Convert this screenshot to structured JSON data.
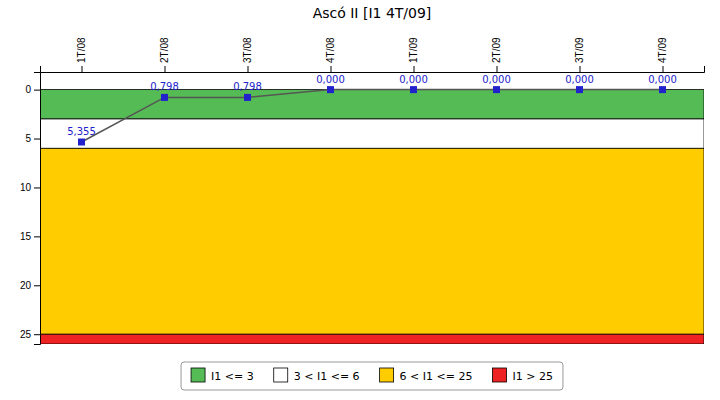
{
  "chart_data": {
    "type": "line",
    "title": "Ascó II [I1 4T/09]",
    "categories": [
      "1T/08",
      "2T/08",
      "3T/08",
      "4T/08",
      "1T/09",
      "2T/09",
      "3T/09",
      "4T/09"
    ],
    "values": [
      5.355,
      0.798,
      0.798,
      0.0,
      0.0,
      0.0,
      0.0,
      0.0
    ],
    "value_labels": [
      "5,355",
      "0,798",
      "0,798",
      "0,000",
      "0,000",
      "0,000",
      "0,000",
      "0,000"
    ],
    "data_labels": true,
    "color": "#555555",
    "colors": [
      "#2222cc",
      "#2222cc",
      "#2222cc",
      "#2222cc",
      "#2222cc",
      "#2222cc",
      "#2222cc",
      "#2222cc"
    ],
    "marker": "square",
    "ylim": [
      26.0,
      -1.8
    ],
    "yticks": [
      0,
      5,
      10,
      15,
      20,
      25
    ],
    "grid": false,
    "legend": "bottom",
    "zones": [
      {
        "name": "I1 <= 3",
        "range": [
          0,
          3
        ],
        "color": "#55bb55"
      },
      {
        "name": "3 < I1 <= 6",
        "range": [
          3,
          6
        ],
        "color": "#FFFFFF"
      },
      {
        "name": "6 < I1 <= 25",
        "range": [
          6,
          25
        ],
        "color": "#FFCC00"
      },
      {
        "name": "I1 > 25",
        "range": [
          25,
          26
        ],
        "color": "#EE2222"
      }
    ]
  }
}
